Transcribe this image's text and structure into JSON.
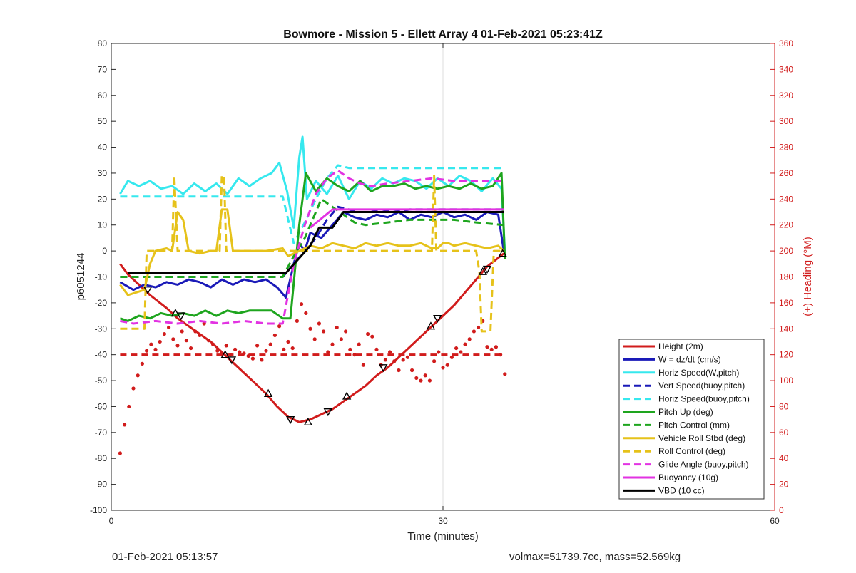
{
  "chart_data": {
    "type": "line",
    "title": "Bowmore - Mission 5 - Ellett Array 4 01-Feb-2021 05:23:41Z",
    "xlabel": "Time (minutes)",
    "ylabel": "p6051244",
    "y2label": "(+) Heading (°M)",
    "xlim": [
      0,
      60
    ],
    "ylim": [
      -100,
      80
    ],
    "y2lim": [
      0,
      360
    ],
    "xticks": [
      0,
      30,
      60
    ],
    "yticks": [
      -100,
      -90,
      -80,
      -70,
      -60,
      -50,
      -40,
      -30,
      -20,
      -10,
      0,
      10,
      20,
      30,
      40,
      50,
      60,
      70,
      80
    ],
    "y2ticks": [
      0,
      20,
      40,
      60,
      80,
      100,
      120,
      140,
      160,
      180,
      200,
      220,
      240,
      260,
      280,
      300,
      320,
      340,
      360
    ],
    "grid": "on at labeled x ticks",
    "legend_position": "bottom-right",
    "colors": {
      "red": "#d11c1c",
      "blue": "#1a1ab8",
      "cyan": "#36e8ee",
      "green": "#1ea51e",
      "yellow": "#e6c21a",
      "magenta": "#e233e2",
      "black": "#000000",
      "axis2": "#d11c1c"
    },
    "series": [
      {
        "name": "Height (2m)",
        "color": "red",
        "style": "solid",
        "x": [
          0.8,
          1.5,
          2.5,
          3.5,
          5,
          6,
          7,
          8,
          9,
          10,
          11,
          12,
          13,
          14,
          15,
          16,
          17,
          18,
          19,
          20,
          21,
          22,
          23,
          24,
          25,
          26,
          27,
          28,
          29,
          30,
          31,
          32,
          33,
          34,
          35.5
        ],
        "y": [
          -5,
          -9,
          -13,
          -17,
          -22,
          -26,
          -29,
          -32,
          -35,
          -39,
          -43,
          -47,
          -51,
          -55,
          -60,
          -64,
          -66,
          -65,
          -63,
          -61,
          -58,
          -55,
          -52,
          -48,
          -45,
          -41,
          -37,
          -33,
          -29,
          -25,
          -21,
          -16,
          -11,
          -6,
          -1
        ]
      },
      {
        "name": "W = dz/dt (cm/s)",
        "color": "blue",
        "style": "solid",
        "x": [
          0.8,
          2,
          3,
          4,
          5,
          6,
          7,
          8,
          9,
          10,
          11,
          12,
          13,
          14,
          15,
          15.8,
          16.5,
          17,
          17.5,
          18,
          19,
          20,
          21,
          22,
          23,
          24,
          25,
          26,
          27,
          28,
          29,
          30,
          31,
          32,
          33,
          34,
          35,
          35.5
        ],
        "y": [
          -12,
          -15,
          -13,
          -14,
          -12,
          -13,
          -11,
          -12,
          -14,
          -11,
          -13,
          -11,
          -12,
          -11,
          -14,
          -18,
          -5,
          3,
          0,
          7,
          5,
          10,
          15,
          13,
          12,
          14,
          13,
          15,
          12,
          14,
          13,
          15,
          13,
          14,
          12,
          15,
          14,
          0
        ]
      },
      {
        "name": "Horiz Speed(W,pitch)",
        "color": "cyan",
        "style": "solid",
        "x": [
          0.8,
          1.5,
          2.5,
          3.5,
          4.5,
          5.5,
          6.5,
          7.5,
          8.5,
          9.5,
          10.5,
          11.5,
          12.5,
          13.5,
          14.5,
          15.2,
          15.9,
          16.5,
          17,
          17.3,
          17.7,
          18.5,
          19.5,
          20.5,
          21.5,
          22.5,
          23.5,
          24.5,
          25.5,
          26.5,
          27.5,
          28.5,
          29.5,
          30.5,
          31.5,
          32.5,
          33.5,
          34.5,
          35.3,
          35.6
        ],
        "y": [
          22,
          27,
          25,
          27,
          24,
          25,
          22,
          26,
          23,
          26,
          22,
          28,
          25,
          28,
          30,
          34,
          23,
          9,
          36,
          44,
          20,
          27,
          22,
          29,
          20,
          27,
          24,
          28,
          26,
          28,
          27,
          24,
          28,
          25,
          29,
          27,
          23,
          28,
          24,
          0
        ]
      },
      {
        "name": "Vert Speed(buoy,pitch)",
        "color": "blue",
        "style": "dashed",
        "x": [
          0.8,
          15.5,
          16.5,
          17.5,
          18.5,
          19.5,
          20.5,
          21.5,
          22.5,
          23.5,
          24.5,
          25.5,
          27,
          29,
          31,
          33,
          35.5
        ],
        "y": [
          -10,
          -10,
          -5,
          0,
          5,
          12,
          17,
          16,
          15,
          15,
          16,
          15,
          16,
          16,
          16,
          16,
          16
        ]
      },
      {
        "name": "Horiz Speed(buoy,pitch)",
        "color": "cyan",
        "style": "dashed",
        "x": [
          0.8,
          15.5,
          16.5,
          17.5,
          18.5,
          19.5,
          20.5,
          21.5,
          23,
          25,
          27,
          29,
          31,
          33,
          35.5
        ],
        "y": [
          21,
          21,
          3,
          11,
          20,
          28,
          33,
          32,
          32,
          32,
          32,
          32,
          32,
          32,
          32
        ]
      },
      {
        "name": "Pitch Up (deg)",
        "color": "green",
        "style": "solid",
        "x": [
          0.8,
          1.5,
          2.5,
          3.5,
          4.5,
          5.5,
          6.5,
          7.5,
          8.5,
          9.5,
          10.5,
          11.5,
          12.5,
          13.5,
          14.5,
          15.5,
          16.2,
          17,
          17.6,
          18.5,
          19.5,
          20.5,
          21.5,
          22.5,
          23.5,
          24.5,
          25.5,
          26.5,
          27.5,
          28.5,
          29.5,
          30.5,
          31.5,
          32.5,
          33.5,
          34.5,
          35.3,
          35.6
        ],
        "y": [
          -26,
          -27,
          -25,
          -26,
          -24,
          -25,
          -24,
          -25,
          -23,
          -25,
          -23,
          -24,
          -23,
          -23,
          -23,
          -26,
          -26,
          10,
          30,
          23,
          28,
          25,
          23,
          27,
          23,
          25,
          25,
          26,
          24,
          25,
          24,
          25,
          24,
          26,
          24,
          25,
          30,
          -3
        ]
      },
      {
        "name": "Pitch Control (mm)",
        "color": "green",
        "style": "dashed",
        "x": [
          0.8,
          15.5,
          16.5,
          17.5,
          18,
          19,
          20,
          21,
          22,
          23,
          25,
          27,
          29,
          31,
          33,
          35.5
        ],
        "y": [
          -10,
          -10,
          -2,
          5,
          10,
          20,
          17,
          14,
          11,
          10,
          11,
          12,
          12,
          12,
          11,
          10
        ]
      },
      {
        "name": "Vehicle Roll Stbd (deg)",
        "color": "yellow",
        "style": "solid",
        "x": [
          0.8,
          1.5,
          3,
          3.5,
          4,
          5,
          5.5,
          6,
          6.5,
          7,
          8,
          9,
          9.5,
          10,
          10.5,
          11,
          12,
          14,
          15.5,
          16,
          16.5,
          17,
          18,
          19,
          20,
          21,
          22,
          23,
          24,
          25,
          26,
          27,
          28,
          29,
          29.5,
          30,
          30.5,
          31,
          32,
          33,
          34,
          35,
          35.5
        ],
        "y": [
          -13,
          -17,
          -15,
          -5,
          0,
          1,
          0,
          15,
          12,
          0,
          -1,
          0,
          0,
          16,
          16,
          0,
          0,
          0,
          1,
          -2,
          -1,
          0,
          2,
          1,
          3,
          2,
          1,
          3,
          2,
          3,
          2,
          2,
          3,
          1,
          1,
          3,
          3,
          2,
          3,
          2,
          1,
          2,
          0
        ]
      },
      {
        "name": "Roll Control (deg)",
        "color": "yellow",
        "style": "dashed",
        "x": [
          0.8,
          3,
          3.2,
          5.5,
          5.7,
          6,
          9.8,
          10,
          10.2,
          10.4,
          16,
          16.2,
          29,
          29.2,
          29.4,
          33,
          33.3,
          33.5,
          34.3,
          34.6,
          35.5
        ],
        "y": [
          -30,
          -30,
          0,
          0,
          29,
          0,
          0,
          29,
          29,
          0,
          0,
          0,
          0,
          29,
          0,
          0,
          -8,
          -31,
          -31,
          0,
          0
        ]
      },
      {
        "name": "Glide Angle (buoy,pitch)",
        "color": "magenta",
        "style": "dashed",
        "x": [
          0.8,
          2,
          4,
          6,
          8,
          10,
          12,
          14,
          15.5,
          16.5,
          17.5,
          18.5,
          19.5,
          20.5,
          21.5,
          22.5,
          23.5,
          25,
          27,
          29,
          31,
          33,
          35.5
        ],
        "y": [
          -27,
          -28,
          -27,
          -28,
          -27,
          -28,
          -27,
          -28,
          -28,
          -5,
          10,
          22,
          28,
          31,
          28,
          26,
          25,
          26,
          27,
          28,
          27,
          27,
          27
        ]
      },
      {
        "name": "Buoyancy (10g)",
        "color": "magenta",
        "style": "solid",
        "x": [
          18,
          20,
          22,
          25,
          28,
          31,
          35.5
        ],
        "y": [
          9,
          16,
          16,
          16,
          16,
          16,
          16
        ]
      },
      {
        "name": "VBD (10 cc)",
        "color": "black",
        "style": "solid",
        "x": [
          1.5,
          15.8,
          18,
          18.8,
          20,
          21,
          22.5,
          25,
          28,
          31,
          35.5
        ],
        "y": [
          -8.5,
          -8.5,
          2,
          9,
          9,
          15,
          15,
          15,
          15,
          15,
          15
        ]
      }
    ],
    "heading_points": {
      "axis": "right",
      "color": "red",
      "x": [
        0.8,
        1.2,
        1.6,
        2.0,
        2.4,
        2.8,
        3.2,
        3.6,
        4.0,
        4.4,
        4.8,
        5.2,
        5.6,
        6.0,
        6.4,
        6.8,
        7.2,
        7.6,
        8.0,
        8.4,
        8.8,
        9.2,
        9.6,
        10.0,
        10.4,
        10.8,
        11.2,
        11.6,
        12.0,
        12.4,
        12.8,
        13.2,
        13.6,
        14.0,
        14.4,
        14.8,
        15.2,
        15.6,
        16.0,
        16.4,
        16.8,
        17.2,
        17.6,
        18.0,
        18.4,
        18.8,
        19.2,
        19.6,
        20.0,
        20.4,
        20.8,
        21.2,
        21.6,
        22.0,
        22.4,
        22.8,
        23.2,
        23.6,
        24.0,
        24.4,
        24.8,
        25.2,
        25.6,
        26.0,
        26.4,
        26.8,
        27.2,
        27.6,
        28.0,
        28.4,
        28.8,
        29.2,
        29.6,
        30.0,
        30.4,
        30.8,
        31.2,
        31.6,
        32.0,
        32.4,
        32.8,
        33.2,
        33.6,
        34.0,
        34.4,
        34.8,
        35.2,
        35.6
      ],
      "y": [
        44,
        66,
        80,
        94,
        104,
        113,
        123,
        128,
        124,
        130,
        136,
        141,
        132,
        127,
        138,
        131,
        125,
        138,
        135,
        144,
        131,
        128,
        123,
        121,
        127,
        120,
        124,
        122,
        121,
        119,
        117,
        127,
        116,
        123,
        128,
        135,
        142,
        124,
        130,
        125,
        146,
        159,
        152,
        140,
        132,
        144,
        138,
        122,
        128,
        141,
        132,
        138,
        124,
        120,
        128,
        112,
        136,
        134,
        124,
        112,
        116,
        122,
        115,
        108,
        116,
        118,
        108,
        102,
        100,
        104,
        100,
        115,
        122,
        110,
        112,
        118,
        125,
        122,
        128,
        132,
        138,
        141,
        146,
        126,
        124,
        126,
        120,
        105
      ]
    },
    "reference_lines": [
      {
        "axis": "right",
        "y": 120,
        "x": [
          0.8,
          35.5
        ],
        "color": "red",
        "style": "dashed"
      }
    ],
    "dive_markers": {
      "x": [
        3.3,
        5.8,
        6.3,
        10.3,
        10.9,
        14.2,
        16.2,
        17.8,
        19.6,
        21.3,
        24.6,
        28.9,
        29.5,
        33.6,
        34.0,
        35.4
      ],
      "y": [
        -15,
        -24,
        -25,
        -40,
        -42,
        -55,
        -65,
        -66,
        -62,
        -56,
        -45,
        -29,
        -26,
        -8,
        -7,
        -1
      ]
    }
  },
  "footer": {
    "start_time": "01-Feb-2021 05:13:57",
    "volume_mass": "volmax=51739.7cc, mass=52.569kg"
  }
}
